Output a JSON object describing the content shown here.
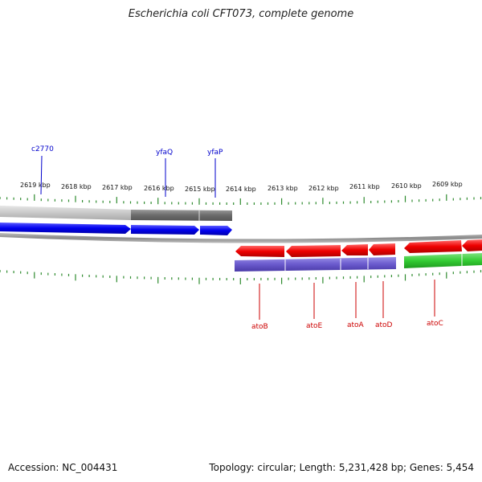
{
  "title": "Escherichia coli CFT073, complete genome",
  "footer": {
    "accession": "Accession: NC_004431",
    "stats": "Topology: circular; Length: 5,231,428 bp; Genes: 5,454"
  },
  "colors": {
    "tick": "#2e8b2e",
    "forward_gene": "#0000ee",
    "reverse_gene": "#ee0000",
    "forward_label": "#0000cc",
    "reverse_label": "#cc0000",
    "gray_dark": "#6b6b6b",
    "gray_light": "#c8c8c8",
    "purple": "#6a5acd",
    "green": "#33cc33"
  },
  "ticks": [
    {
      "label": "2619 kbp"
    },
    {
      "label": "2618 kbp"
    },
    {
      "label": "2617 kbp"
    },
    {
      "label": "2616 kbp"
    },
    {
      "label": "2615 kbp"
    },
    {
      "label": "2614 kbp"
    },
    {
      "label": "2613 kbp"
    },
    {
      "label": "2612 kbp"
    },
    {
      "label": "2611 kbp"
    },
    {
      "label": "2610 kbp"
    },
    {
      "label": "2609 kbp"
    }
  ],
  "forward_genes": [
    {
      "label": "c2770"
    },
    {
      "label": "yfaQ"
    },
    {
      "label": "yfaP"
    }
  ],
  "reverse_genes": [
    {
      "label": "atoB"
    },
    {
      "label": "atoE"
    },
    {
      "label": "atoA"
    },
    {
      "label": "atoD"
    },
    {
      "label": "atoC"
    }
  ]
}
